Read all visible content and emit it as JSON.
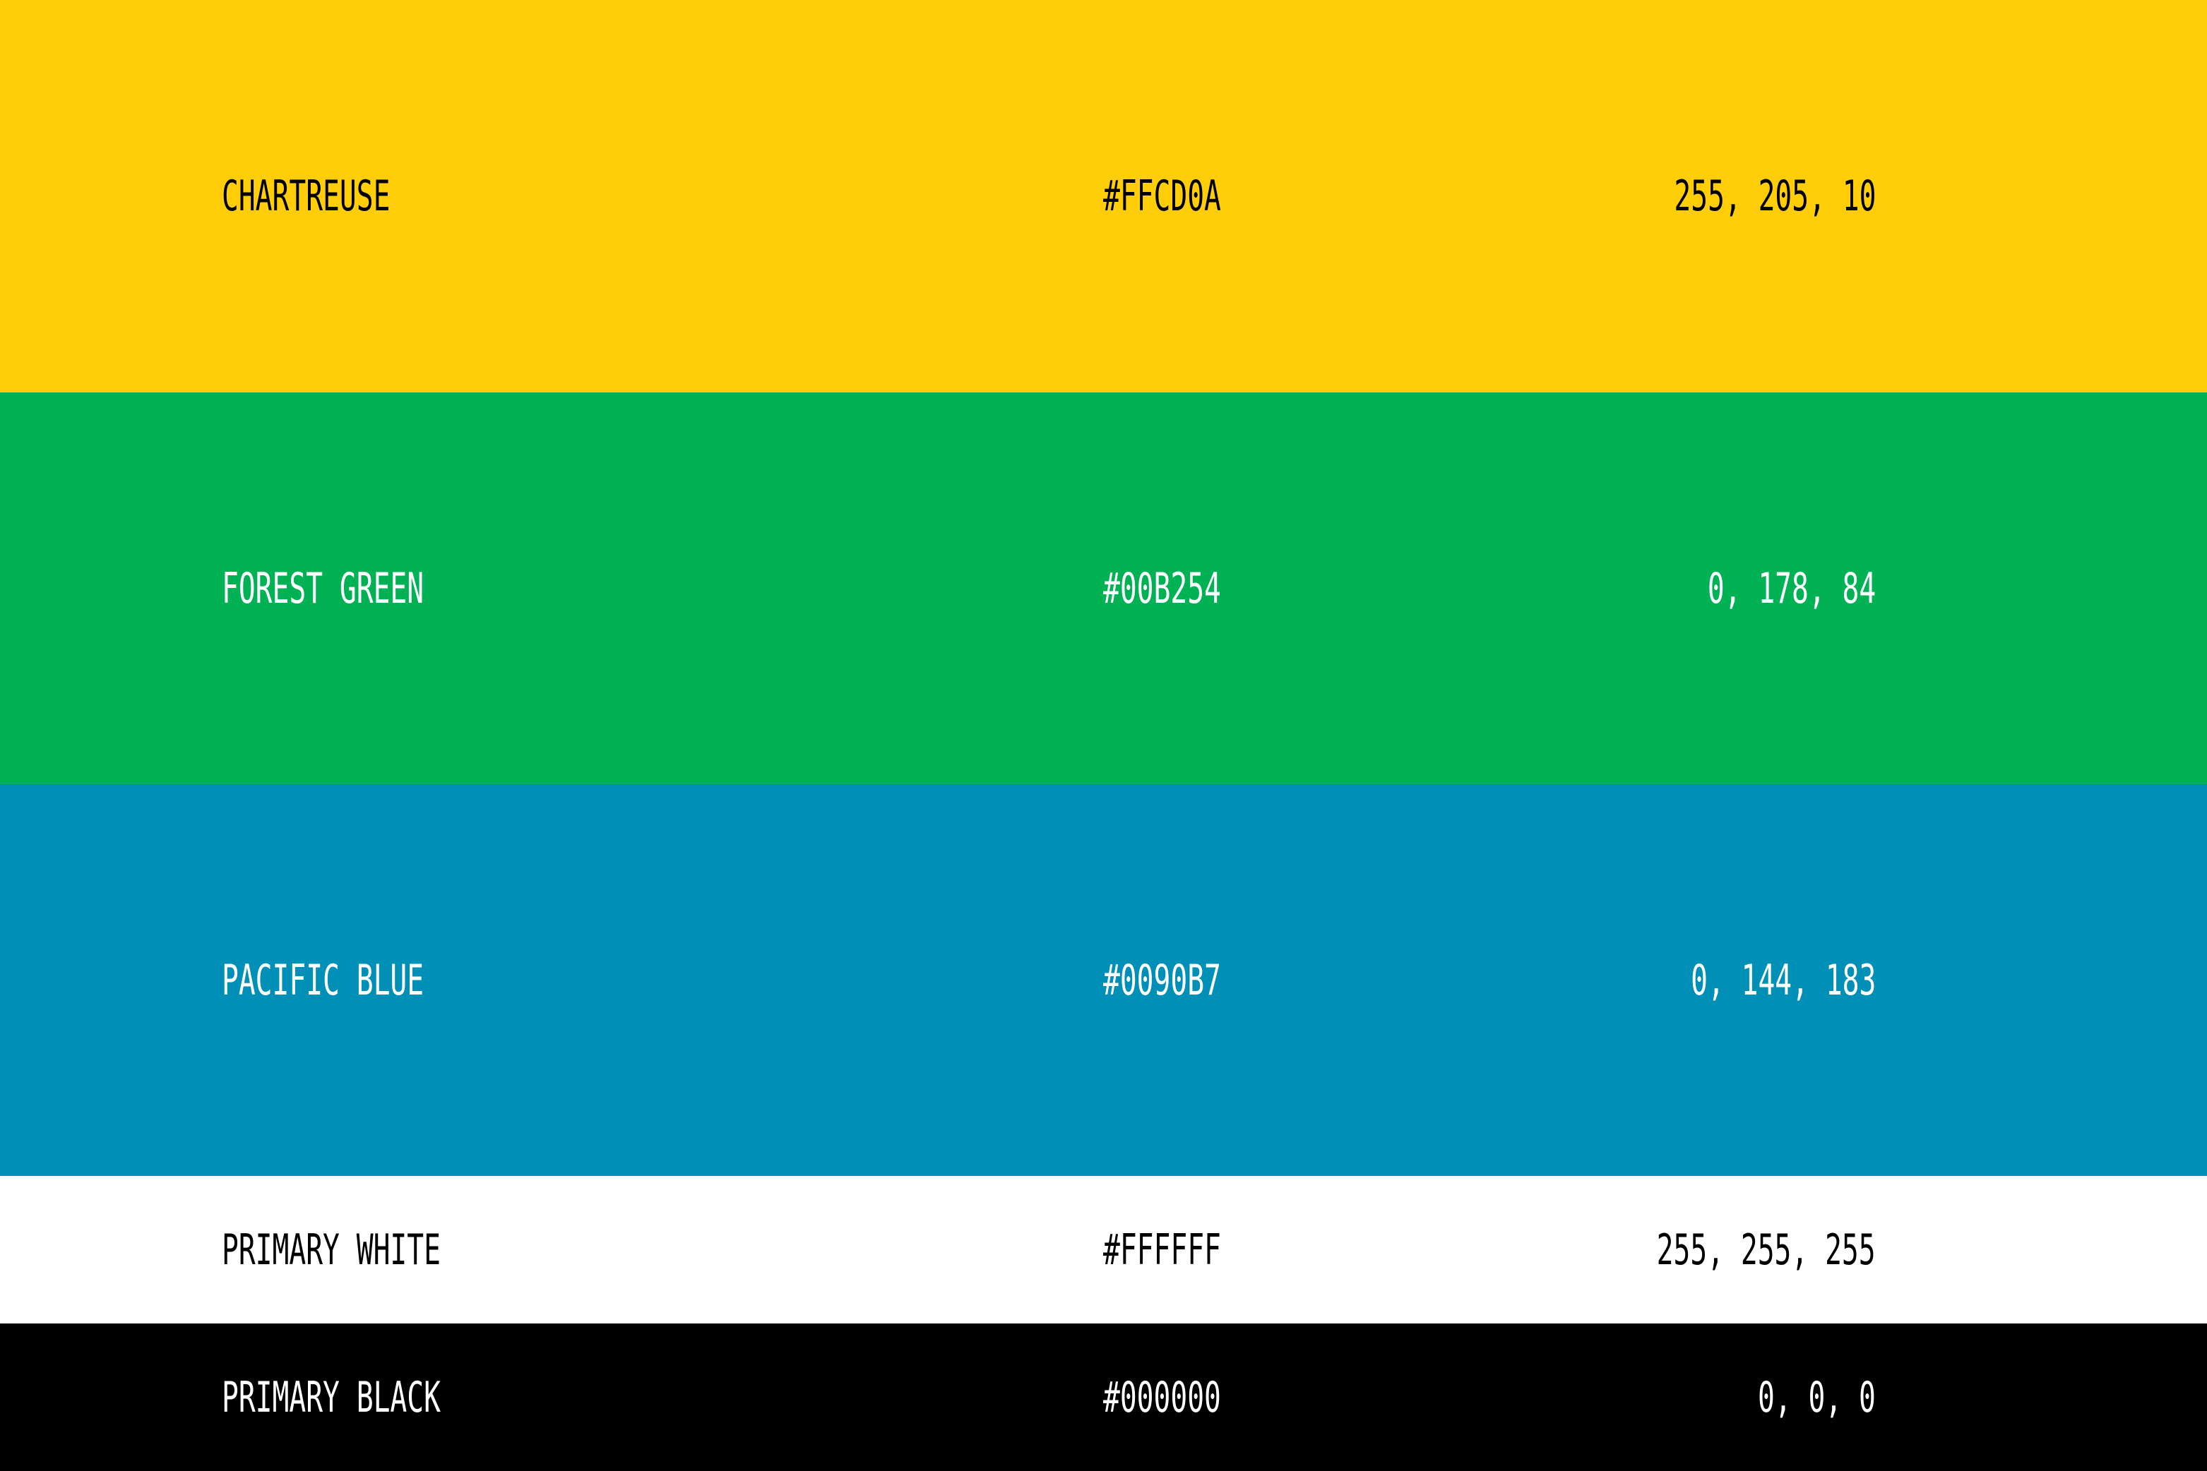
{
  "swatches": [
    {
      "name": "CHARTREUSE",
      "hex": "#FFCD0A",
      "rgb": "255, 205, 10",
      "background": "#FFCD0A",
      "text_color": "#000000"
    },
    {
      "name": "FOREST GREEN",
      "hex": "#00B254",
      "rgb": "0, 178, 84",
      "background": "#00B254",
      "text_color": "#FFFFFF"
    },
    {
      "name": "PACIFIC BLUE",
      "hex": "#0090B7",
      "rgb": "0, 144, 183",
      "background": "#0090B7",
      "text_color": "#FFFFFF"
    },
    {
      "name": "PRIMARY WHITE",
      "hex": "#FFFFFF",
      "rgb": "255, 255, 255",
      "background": "#FFFFFF",
      "text_color": "#000000"
    },
    {
      "name": "PRIMARY BLACK",
      "hex": "#000000",
      "rgb": "0, 0, 0",
      "background": "#000000",
      "text_color": "#FFFFFF"
    }
  ]
}
